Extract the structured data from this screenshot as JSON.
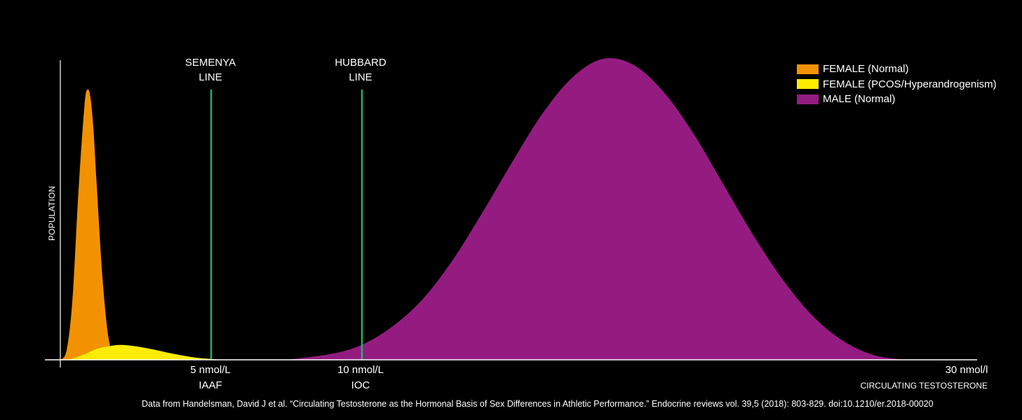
{
  "chart_data": {
    "type": "area",
    "ylabel": "POPULATION",
    "xlabel": "CIRCULATING TESTOSTERONE",
    "legend_position": "top-right",
    "grid": false,
    "xlim": [
      0,
      30
    ],
    "ylim": [
      0,
      1
    ],
    "series": [
      {
        "name": "FEMALE (Normal)",
        "color": "#f39200",
        "x": [
          0,
          0.2,
          0.4,
          0.6,
          0.8,
          0.9,
          1.0,
          1.1,
          1.2,
          1.4,
          1.6,
          1.8,
          2.0
        ],
        "y": [
          0,
          0.03,
          0.22,
          0.62,
          0.94,
          1.0,
          0.97,
          0.85,
          0.66,
          0.3,
          0.08,
          0.01,
          0
        ]
      },
      {
        "name": "FEMALE (PCOS/Hyperandrogenism)",
        "color": "#ffec00",
        "x": [
          0.3,
          0.8,
          1.2,
          1.6,
          2.0,
          2.5,
          3.0,
          3.5,
          4.0,
          4.5,
          5.0,
          5.5
        ],
        "y": [
          0,
          0.02,
          0.04,
          0.05,
          0.055,
          0.05,
          0.04,
          0.028,
          0.017,
          0.008,
          0.003,
          0
        ]
      },
      {
        "name": "MALE (Normal)",
        "color": "#941c80",
        "x": [
          7.5,
          9,
          10,
          11,
          12,
          13,
          14,
          15,
          16,
          17,
          18,
          19,
          20,
          21,
          22,
          23,
          24,
          25,
          26,
          27,
          28
        ],
        "y": [
          0,
          0.02,
          0.05,
          0.11,
          0.2,
          0.33,
          0.49,
          0.66,
          0.82,
          0.94,
          1.0,
          0.98,
          0.89,
          0.75,
          0.58,
          0.41,
          0.26,
          0.14,
          0.06,
          0.015,
          0
        ]
      }
    ],
    "vlines": [
      {
        "x": 5,
        "label_line1": "SEMENYA",
        "label_line2": "LINE",
        "color": "#1db46c"
      },
      {
        "x": 10,
        "label_line1": "HUBBARD",
        "label_line2": "LINE",
        "color": "#1db46c"
      }
    ],
    "ticks": [
      {
        "x": 5,
        "line1": "5 nmol/L",
        "line2": "IAAF"
      },
      {
        "x": 10,
        "line1": "10 nmol/L",
        "line2": "IOC"
      },
      {
        "x": 30,
        "line1": "30 nmol/l",
        "line2": ""
      }
    ],
    "annotation": "Data from Handelsman, David J et al. “Circulating Testosterone as the Hormonal Basis of Sex Differences in Athletic Performance.” Endocrine reviews vol. 39,5 (2018): 803-829. doi:10.1210/er.2018-00020"
  }
}
